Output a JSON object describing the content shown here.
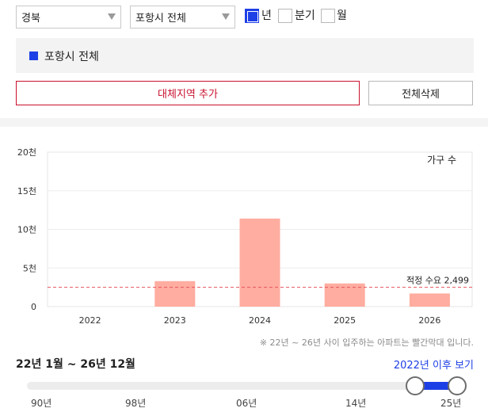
{
  "filters": {
    "region": "경북",
    "city": "포항시 전체",
    "period_options": [
      {
        "label": "년",
        "checked": true
      },
      {
        "label": "분기",
        "checked": false
      },
      {
        "label": "월",
        "checked": false
      }
    ]
  },
  "selected_area": "포항시 전체",
  "buttons": {
    "add_alt_region": "대체지역 추가",
    "clear_all": "전체삭제"
  },
  "chart_data": {
    "type": "bar",
    "title": "",
    "legend": "가구 수",
    "categories": [
      "2022",
      "2023",
      "2024",
      "2025",
      "2026"
    ],
    "values": [
      0,
      3300,
      11400,
      3000,
      1700
    ],
    "y_ticks": [
      "0",
      "5천",
      "10천",
      "15천",
      "20천"
    ],
    "ylim": [
      0,
      20000
    ],
    "reference_line": {
      "label": "적정 수요 2,499",
      "value": 2499
    },
    "bar_color": "#ffada0",
    "reference_color": "#e5535f",
    "grid": true
  },
  "note": "※ 22년 ~ 26년 사이 입주하는 아파트는 빨간막대 입니다.",
  "range_label": "22년 1월 ~ 26년 12월",
  "after_link": "2022년 이후 보기",
  "slider": {
    "ticks": [
      "90년",
      "98년",
      "06년",
      "14년",
      "25년"
    ],
    "accent": "#1d3fe6"
  }
}
